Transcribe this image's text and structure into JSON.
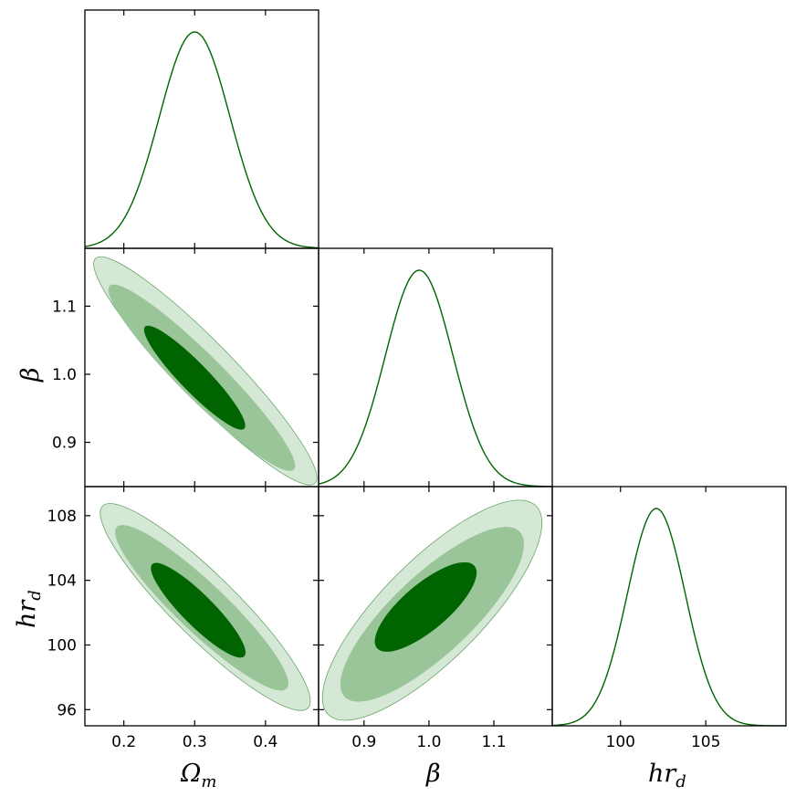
{
  "colors": {
    "line": "#006400",
    "contour_outer": "#d5e8d5",
    "contour_middle": "#99c599",
    "contour_inner": "#006400"
  },
  "chart_data": [
    {
      "type": "line",
      "panel": "Omega_m marginal",
      "xlim": [
        0.145,
        0.475
      ],
      "x_ticks": [
        "0.2",
        "0.3",
        "0.4"
      ],
      "peak": 0.3,
      "sigma": 0.05
    },
    {
      "type": "line",
      "panel": "beta marginal",
      "xlim": [
        0.83,
        1.19
      ],
      "peak": 0.985,
      "sigma": 0.052
    },
    {
      "type": "line",
      "panel": "hr_d marginal",
      "xlim": [
        96.0,
        109.7
      ],
      "x_ticks": [
        "100",
        "105"
      ],
      "peak": 102.1,
      "sigma": 1.7
    },
    {
      "type": "contour",
      "panel": "beta vs Omega_m",
      "xlim": [
        0.145,
        0.475
      ],
      "ylim": [
        0.835,
        1.185
      ],
      "y_ticks": [
        "0.9",
        "1.0",
        "1.1"
      ],
      "center": [
        0.305,
        0.995
      ],
      "levels": [
        {
          "x": [
            0.16,
            0.47
          ],
          "y": [
            0.84,
            1.17
          ]
        },
        {
          "x": [
            0.18,
            0.44
          ],
          "y": [
            0.86,
            1.13
          ]
        },
        {
          "x": [
            0.23,
            0.37
          ],
          "y": [
            0.92,
            1.07
          ]
        }
      ]
    },
    {
      "type": "contour",
      "panel": "hr_d vs Omega_m",
      "xlim": [
        0.145,
        0.475
      ],
      "ylim": [
        95.0,
        109.8
      ],
      "x_ticks": [
        "0.2",
        "0.3",
        "0.4"
      ],
      "y_ticks": [
        "96",
        "100",
        "104",
        "108"
      ],
      "center": [
        0.31,
        102.4
      ],
      "levels": [
        {
          "x": [
            0.17,
            0.46
          ],
          "y": [
            96.1,
            108.6
          ]
        },
        {
          "x": [
            0.19,
            0.43
          ],
          "y": [
            97.3,
            107.3
          ]
        },
        {
          "x": [
            0.24,
            0.37
          ],
          "y": [
            99.3,
            105.0
          ]
        }
      ]
    },
    {
      "type": "contour",
      "panel": "hr_d vs beta",
      "xlim": [
        0.83,
        1.19
      ],
      "ylim": [
        95.0,
        109.8
      ],
      "x_ticks": [
        "0.9",
        "1.0",
        "1.1"
      ],
      "center": [
        0.995,
        102.2
      ],
      "levels": [
        {
          "x": [
            0.845,
            1.165
          ],
          "y": [
            95.7,
            108.6
          ]
        },
        {
          "x": [
            0.87,
            1.14
          ],
          "y": [
            96.8,
            107.0
          ]
        },
        {
          "x": [
            0.92,
            1.07
          ],
          "y": [
            99.8,
            104.9
          ]
        }
      ]
    }
  ],
  "axes": {
    "x1": {
      "main": "Ω",
      "sub": "m"
    },
    "x2": {
      "main": "β"
    },
    "x3": {
      "main": "hr",
      "sub": "d"
    },
    "y1": {
      "main": "β"
    },
    "y2": {
      "main": "hr",
      "sub": "d"
    }
  }
}
